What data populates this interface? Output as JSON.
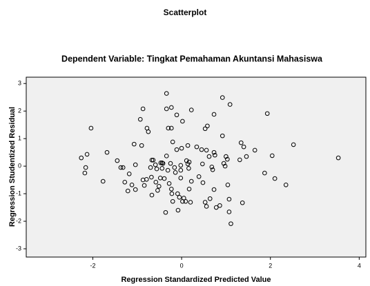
{
  "chart_data": {
    "type": "scatter",
    "title": "Scatterplot",
    "subtitle": "Dependent Variable: Tingkat Pemahaman Akuntansi Mahasiswa",
    "x_label": "Regression Standardized Predicted Value",
    "y_label": "Regression Studentized Residual",
    "xlim": [
      -3.5,
      4.15
    ],
    "ylim": [
      -3.3,
      3.23
    ],
    "xticks": [
      -2,
      0,
      2,
      4
    ],
    "yticks": [
      -3,
      -2,
      -1,
      0,
      1,
      2,
      3
    ],
    "grid": false,
    "color": "#000000",
    "x": [
      -2.04,
      -2.13,
      -2.26,
      -2.16,
      -2.18,
      -1.68,
      -1.77,
      -1.45,
      -1.37,
      -1.32,
      -1.28,
      -1.21,
      -1.18,
      -1.12,
      -1.07,
      -1.04,
      -1.04,
      -0.93,
      -0.87,
      -0.9,
      -0.87,
      -0.84,
      -0.79,
      -0.78,
      -0.75,
      -0.7,
      -0.68,
      -0.67,
      -0.67,
      -0.64,
      -0.59,
      -0.58,
      -0.56,
      -0.54,
      -0.51,
      -0.48,
      -0.47,
      -0.44,
      -0.42,
      -0.44,
      -0.39,
      -0.36,
      -0.34,
      -0.34,
      -0.34,
      -0.31,
      -0.3,
      -0.28,
      -0.23,
      -0.23,
      -0.25,
      -0.23,
      -0.2,
      -0.22,
      -0.2,
      -0.16,
      -0.14,
      -0.11,
      -0.11,
      -0.09,
      -0.08,
      -0.05,
      -0.02,
      -0.02,
      -0.02,
      0.02,
      0.0,
      0.02,
      0.05,
      0.09,
      0.11,
      0.14,
      0.14,
      0.16,
      0.17,
      0.17,
      0.22,
      0.2,
      0.22,
      0.34,
      0.39,
      0.45,
      0.47,
      0.48,
      0.53,
      0.58,
      0.56,
      0.53,
      0.56,
      0.62,
      0.64,
      0.68,
      0.7,
      0.73,
      0.73,
      0.73,
      0.75,
      0.78,
      0.86,
      0.92,
      0.92,
      0.95,
      0.98,
      1.0,
      1.03,
      1.09,
      1.04,
      1.07,
      1.11,
      1.07,
      1.31,
      1.34,
      1.37,
      1.4,
      1.46,
      1.65,
      1.87,
      1.93,
      2.04,
      2.1,
      2.35,
      2.52,
      3.53
    ],
    "y": [
      1.38,
      0.43,
      0.3,
      -0.05,
      -0.25,
      0.5,
      -0.55,
      0.2,
      -0.05,
      -0.05,
      -0.58,
      -0.9,
      -0.28,
      -0.68,
      0.8,
      0.05,
      -0.85,
      1.7,
      2.08,
      0.75,
      -0.5,
      -0.7,
      -0.48,
      1.38,
      1.25,
      -0.05,
      -0.4,
      0.22,
      -1.05,
      0.22,
      0.05,
      -0.58,
      -0.1,
      -0.88,
      -0.73,
      -0.43,
      0.12,
      0.12,
      0.1,
      -0.08,
      -0.45,
      -1.68,
      2.64,
      2.08,
      0.37,
      -0.15,
      1.38,
      -0.63,
      2.13,
      -0.83,
      0.1,
      1.38,
      0.88,
      -1.0,
      -1.28,
      -0.05,
      -0.23,
      1.86,
      0.6,
      -1.0,
      -1.6,
      -1.13,
      -0.43,
      0.03,
      -0.15,
      1.63,
      0.65,
      -1.28,
      -1.16,
      -1.28,
      0.2,
      0.08,
      0.75,
      -0.08,
      0.15,
      -0.83,
      2.04,
      -1.31,
      -0.55,
      0.7,
      -0.38,
      0.6,
      0.08,
      -0.6,
      1.36,
      1.46,
      0.58,
      -1.31,
      -1.46,
      0.35,
      -1.18,
      -0.03,
      -0.13,
      -0.85,
      1.88,
      0.5,
      0.4,
      -1.5,
      -1.43,
      2.49,
      1.1,
      0.1,
      0.0,
      0.35,
      0.25,
      2.24,
      -0.68,
      -1.66,
      -2.09,
      -1.2,
      0.23,
      0.85,
      -1.33,
      0.7,
      0.35,
      0.58,
      -0.25,
      1.91,
      0.38,
      -0.45,
      -0.68,
      0.78,
      0.3
    ]
  }
}
